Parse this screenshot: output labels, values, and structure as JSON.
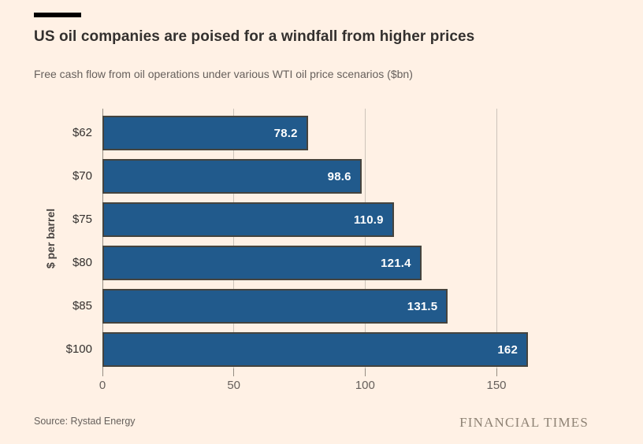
{
  "page": {
    "background": "#FFF1E5",
    "accent_rule_color": "#000000"
  },
  "header": {
    "title": "US oil companies are poised for a windfall from higher prices",
    "subtitle": "Free cash flow from oil operations under various WTI oil price scenarios ($bn)"
  },
  "footer": {
    "source": "Source: Rystad Energy",
    "brand": "FINANCIAL TIMES"
  },
  "chart_data": {
    "type": "bar",
    "orientation": "horizontal",
    "title": "US oil companies are poised for a windfall from higher prices",
    "subtitle": "Free cash flow from oil operations under various WTI oil price scenarios ($bn)",
    "ylabel": "$ per barrel",
    "xlabel": "",
    "categories": [
      "$62",
      "$70",
      "$75",
      "$80",
      "$85",
      "$100"
    ],
    "values": [
      78.2,
      98.6,
      110.9,
      121.4,
      131.5,
      162
    ],
    "value_labels": [
      "78.2",
      "98.6",
      "110.9",
      "121.4",
      "131.5",
      "162"
    ],
    "xlim": [
      0,
      165
    ],
    "x_ticks": [
      0,
      50,
      100,
      150
    ],
    "x_tick_labels": [
      "0",
      "50",
      "100",
      "150"
    ],
    "grid": true,
    "legend": "none",
    "bar_color": "#215A8C",
    "bar_border_color": "#45443E",
    "value_label_color": "#FFFFFF",
    "gridline_color": "#CDC4BA",
    "axis_color": "#968D82"
  }
}
